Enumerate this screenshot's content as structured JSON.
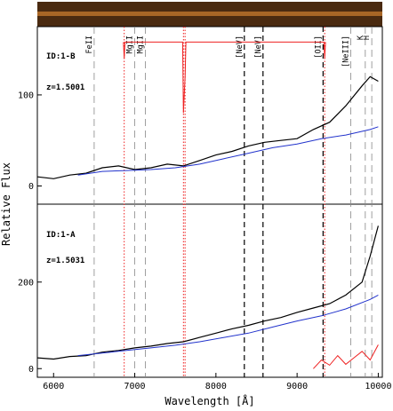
{
  "chart_data": {
    "type": "line",
    "xlabel": "Wavelength [Å]",
    "ylabel": "Relative Flux",
    "xlim": [
      5800,
      10050
    ],
    "x_ticks": [
      6000,
      7000,
      8000,
      9000,
      10000
    ],
    "colors": {
      "object": "#000000",
      "template": "#2233cc",
      "sky": "#ee2222",
      "emission": "#000000"
    },
    "spectral_lines": [
      {
        "label": "FeII",
        "wavelength": 6500,
        "style": "dashed-grey"
      },
      {
        "label": "MgII",
        "wavelength": 7000,
        "style": "dashed-grey"
      },
      {
        "label": "MgII",
        "wavelength": 7130,
        "style": "dashed-grey"
      },
      {
        "label": "[NeV]",
        "wavelength": 8350,
        "style": "dashed-black"
      },
      {
        "label": "[NeV]",
        "wavelength": 8580,
        "style": "dashed-black"
      },
      {
        "label": "[OII]",
        "wavelength": 9320,
        "style": "dashed-black"
      },
      {
        "label": "[NeIII]",
        "wavelength": 9660,
        "style": "dashed-grey"
      },
      {
        "label": "K",
        "wavelength": 9840,
        "style": "dashed-grey"
      },
      {
        "label": "H",
        "wavelength": 9920,
        "style": "dashed-grey"
      }
    ],
    "telluric_bands": [
      6870,
      7600,
      7620,
      9340
    ],
    "panels": [
      {
        "id_label": "ID:1-B",
        "z_label": "z=1.5001",
        "ylim": [
          -20,
          175
        ],
        "y_ticks": [
          0,
          100
        ],
        "series": [
          {
            "role": "object",
            "x": [
              5800,
              6000,
              6200,
              6400,
              6600,
              6800,
              7000,
              7200,
              7400,
              7600,
              7800,
              8000,
              8200,
              8400,
              8600,
              8800,
              9000,
              9200,
              9400,
              9600,
              9800,
              9900,
              10000
            ],
            "y": [
              10,
              8,
              12,
              14,
              20,
              22,
              18,
              20,
              24,
              22,
              28,
              34,
              38,
              44,
              48,
              50,
              52,
              62,
              70,
              88,
              110,
              120,
              115
            ]
          },
          {
            "role": "template",
            "x": [
              6300,
              6600,
              6900,
              7200,
              7500,
              7800,
              8100,
              8400,
              8700,
              9000,
              9300,
              9600,
              9900,
              10000
            ],
            "y": [
              12,
              16,
              17,
              18,
              20,
              24,
              30,
              36,
              42,
              46,
              52,
              56,
              62,
              65
            ]
          },
          {
            "role": "sky",
            "x": [
              6860,
              6870,
              6880,
              7590,
              7600,
              7610,
              7620,
              7630,
              9330,
              9340,
              9350
            ],
            "y": [
              158,
              140,
              158,
              158,
              80,
              100,
              120,
              158,
              158,
              140,
              158
            ]
          }
        ]
      },
      {
        "id_label": "ID:1-A",
        "z_label": "z=1.5031",
        "ylim": [
          -20,
          380
        ],
        "y_ticks": [
          0,
          200,
          400
        ],
        "series": [
          {
            "role": "object",
            "x": [
              5800,
              6000,
              6200,
              6400,
              6600,
              6800,
              7000,
              7200,
              7400,
              7600,
              7800,
              8000,
              8200,
              8400,
              8600,
              8800,
              9000,
              9200,
              9400,
              9600,
              9800,
              9900,
              10000
            ],
            "y": [
              25,
              22,
              28,
              30,
              38,
              42,
              48,
              52,
              58,
              62,
              72,
              82,
              92,
              100,
              110,
              118,
              130,
              140,
              150,
              170,
              200,
              260,
              330
            ]
          },
          {
            "role": "template",
            "x": [
              6300,
              6600,
              6900,
              7200,
              7500,
              7800,
              8100,
              8400,
              8700,
              9000,
              9300,
              9600,
              9900,
              10000
            ],
            "y": [
              30,
              36,
              42,
              48,
              54,
              62,
              72,
              82,
              96,
              110,
              122,
              138,
              160,
              170
            ]
          },
          {
            "role": "sky",
            "x": [
              9200,
              9300,
              9400,
              9500,
              9600,
              9700,
              9800,
              9900,
              10000
            ],
            "y": [
              0,
              20,
              8,
              30,
              10,
              25,
              40,
              20,
              55
            ]
          }
        ]
      }
    ]
  }
}
